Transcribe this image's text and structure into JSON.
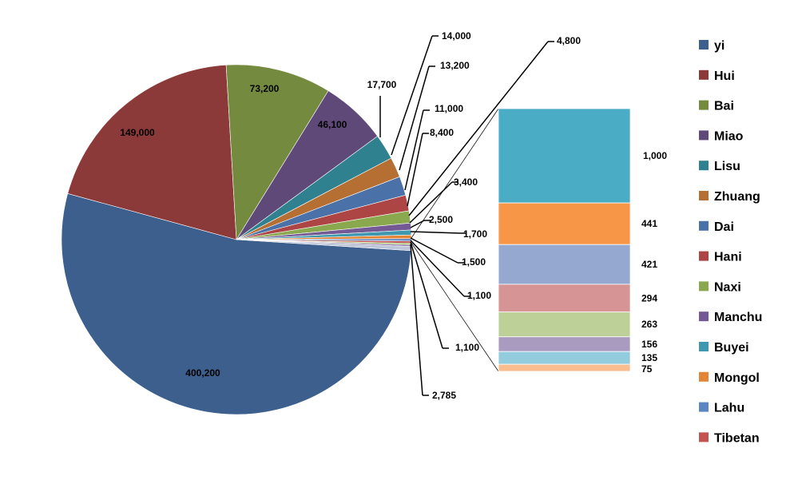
{
  "chart_data": {
    "type": "pie",
    "subtype": "bar-of-pie",
    "slices": [
      {
        "name": "yi",
        "value": 400200,
        "label": "400,200",
        "color": "#3c5f8e"
      },
      {
        "name": "Hui",
        "value": 149000,
        "label": "149,000",
        "color": "#8b3a39"
      },
      {
        "name": "Bai",
        "value": 73200,
        "label": "73,200",
        "color": "#748b3f"
      },
      {
        "name": "Miao",
        "value": 46100,
        "label": "46,100",
        "color": "#5e4979"
      },
      {
        "name": "Lisu",
        "value": 17700,
        "label": "17,700",
        "color": "#30818f"
      },
      {
        "name": "Zhuang",
        "value": 14000,
        "label": "14,000",
        "color": "#b66f33"
      },
      {
        "name": "Dai",
        "value": 13200,
        "label": "13,200",
        "color": "#4a71a8"
      },
      {
        "name": "Hani",
        "value": 11000,
        "label": "11,000",
        "color": "#ac4543"
      },
      {
        "name": "Naxi",
        "value": 8400,
        "label": "8,400",
        "color": "#8aa84e"
      },
      {
        "name": "Manchu",
        "value": 4800,
        "label": "4,800",
        "color": "#735a94"
      },
      {
        "name": "Buyei",
        "value": 3400,
        "label": "3,400",
        "color": "#3e99b0"
      },
      {
        "name": "Mongol",
        "value": 2500,
        "label": "2,500",
        "color": "#e28537"
      },
      {
        "name": "Lahu",
        "value": 1700,
        "label": "1,700",
        "color": "#5b86c1"
      },
      {
        "name": "Tibetan",
        "value": 1500,
        "label": "1,500",
        "color": "#c25350"
      },
      {
        "name": "",
        "value": 1100,
        "label": "1,100",
        "color": "#9cbc5d"
      },
      {
        "name": "",
        "value": 1100,
        "label": "1,100",
        "color": "#8772a8"
      },
      {
        "name": "",
        "value": 2785,
        "label": "2,785",
        "color": "#bcc6d8"
      }
    ],
    "bar_of_pie": [
      {
        "value": 1000,
        "label": "1,000",
        "color": "#4bacc6"
      },
      {
        "value": 441,
        "label": "441",
        "color": "#f79646"
      },
      {
        "value": 421,
        "label": "421",
        "color": "#95a9d0"
      },
      {
        "value": 294,
        "label": "294",
        "color": "#d69594"
      },
      {
        "value": 263,
        "label": "263",
        "color": "#bcd098"
      },
      {
        "value": 156,
        "label": "156",
        "color": "#a89bbf"
      },
      {
        "value": 135,
        "label": "135",
        "color": "#93ccdd"
      },
      {
        "value": 75,
        "label": "75",
        "color": "#f9bd8f"
      }
    ],
    "legend": [
      "yi",
      "Hui",
      "Bai",
      "Miao",
      "Lisu",
      "Zhuang",
      "Dai",
      "Hani",
      "Naxi",
      "Manchu",
      "Buyei",
      "Mongol",
      "Lahu",
      "Tibetan"
    ],
    "legend_position": "right",
    "title": "",
    "grid": false
  }
}
